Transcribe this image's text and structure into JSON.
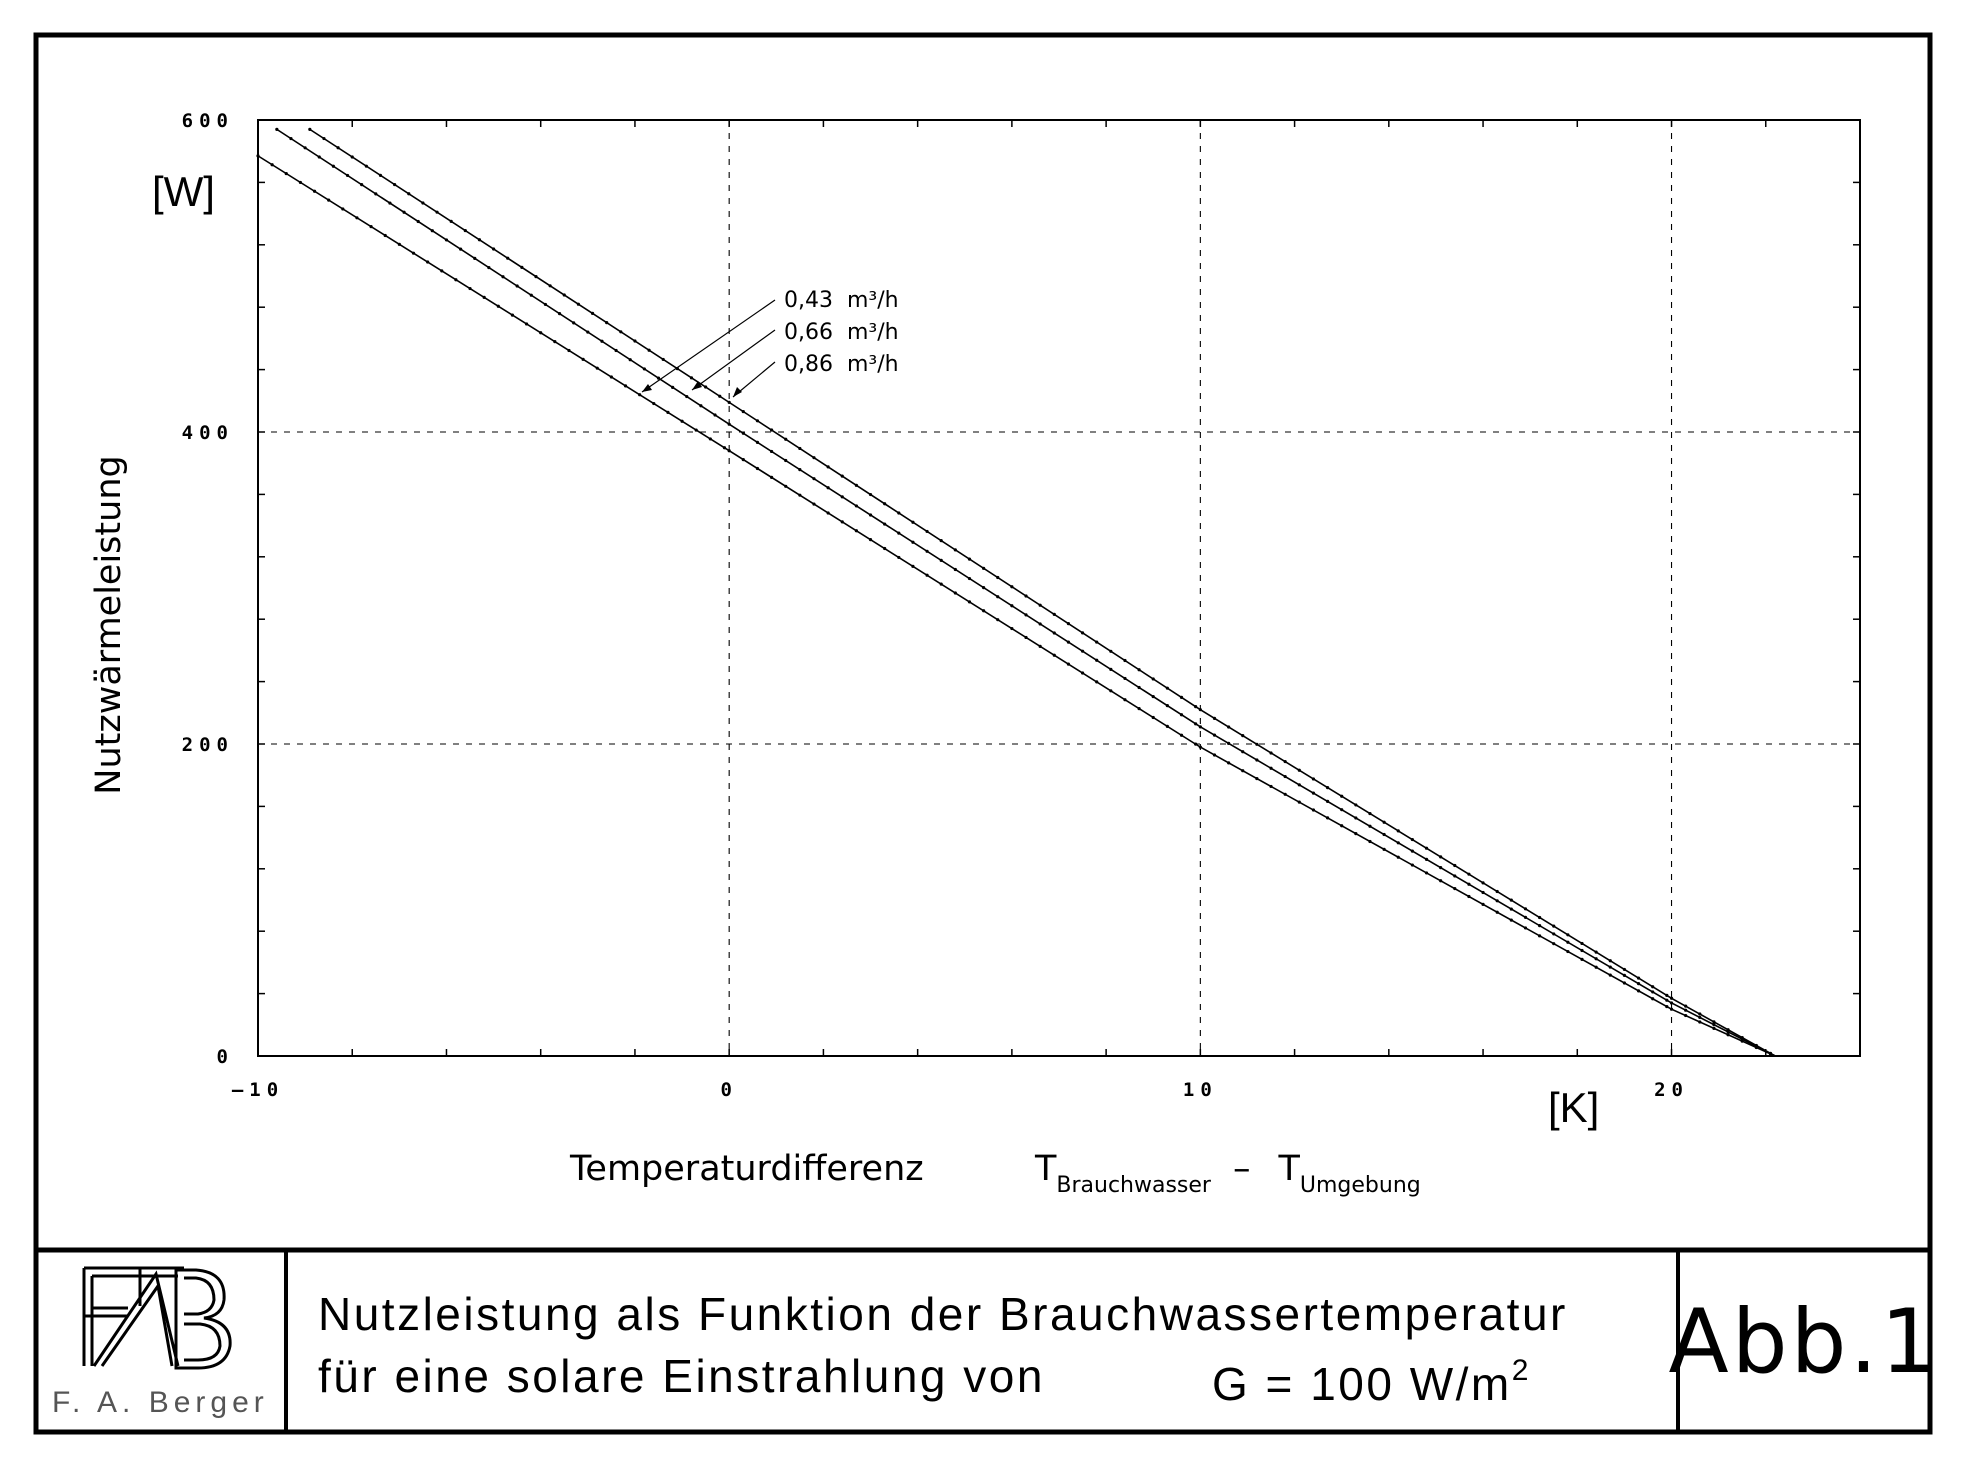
{
  "chart_data": {
    "type": "line",
    "title": "",
    "xlabel": "Temperaturdifferenz",
    "xlabel_formula": {
      "t1": "T",
      "sub1": "Brauchwasser",
      "minus": "–",
      "t2": "T",
      "sub2": "Umgebung"
    },
    "x_unit": "[K]",
    "ylabel": "Nutzwärmeleistung",
    "y_unit": "[W]",
    "xlim": [
      -10,
      24
    ],
    "ylim": [
      0,
      600
    ],
    "x_ticks": [
      "-10",
      "0",
      "10",
      "20"
    ],
    "y_ticks": [
      "0",
      "200",
      "400",
      "600"
    ],
    "grid": true,
    "series": [
      {
        "name": "0,43 m³/h",
        "x": [
          -10,
          0,
          10,
          20,
          22.2
        ],
        "y": [
          577,
          388,
          198,
          30,
          0
        ]
      },
      {
        "name": "0,66 m³/h",
        "x": [
          -9.6,
          0,
          10,
          20,
          22.2
        ],
        "y": [
          594,
          405,
          211,
          34,
          0
        ]
      },
      {
        "name": "0,86 m³/h",
        "x": [
          -8.9,
          0,
          10,
          20,
          22.2
        ],
        "y": [
          594,
          419,
          222,
          37,
          0
        ]
      }
    ]
  },
  "legend": {
    "placement": "top-center",
    "entries": [
      {
        "value": "0,43",
        "unit": "m³/h"
      },
      {
        "value": "0,66",
        "unit": "m³/h"
      },
      {
        "value": "0,86",
        "unit": "m³/h"
      }
    ]
  },
  "footer": {
    "logo_name": "F. A. Berger",
    "caption_line1": "Nutzleistung als Funktion der Brauchwassertemperatur",
    "caption_line2": "für eine solare Einstrahlung von",
    "formula": {
      "main": "G = 100 W/m",
      "sup": "2"
    },
    "figure_label": "Abb.1"
  }
}
